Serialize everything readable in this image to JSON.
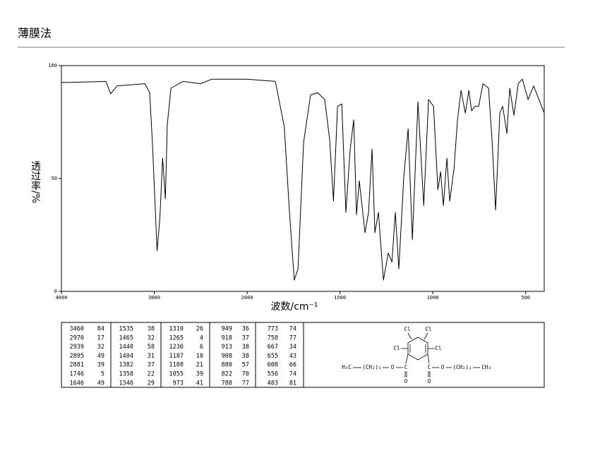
{
  "header": {
    "title": "薄膜法"
  },
  "chart_data": {
    "type": "line",
    "xlabel": "波数/cm⁻¹",
    "ylabel": "透过率/%",
    "xlim": [
      4000,
      400
    ],
    "xticks": [
      4000,
      3000,
      2000,
      1500,
      1000,
      500
    ],
    "xscale": {
      "break": 2000,
      "factor": 2
    },
    "ylim": [
      0,
      100
    ],
    "yticks": [
      0,
      50,
      100
    ],
    "grid": false,
    "color": "#000000",
    "x": [
      4000,
      3520,
      3470,
      3400,
      3100,
      3050,
      3020,
      2970,
      2940,
      2910,
      2880,
      2860,
      2820,
      2690,
      2500,
      2380,
      2000,
      1848,
      1800,
      1772,
      1746,
      1726,
      1696,
      1658,
      1620,
      1582,
      1555,
      1535,
      1513,
      1490,
      1468,
      1445,
      1426,
      1411,
      1396,
      1380,
      1365,
      1346,
      1327,
      1312,
      1293,
      1266,
      1240,
      1220,
      1202,
      1183,
      1156,
      1133,
      1110,
      1080,
      1049,
      1023,
      996,
      973,
      958,
      943,
      924,
      909,
      886,
      867,
      848,
      825,
      806,
      791,
      772,
      753,
      730,
      700,
      681,
      662,
      639,
      624,
      601,
      586,
      563,
      540,
      518,
      487,
      457,
      400
    ],
    "values": [
      92.5,
      93,
      87.5,
      91,
      92,
      88,
      66,
      18,
      32,
      59,
      41,
      74,
      90,
      93,
      92,
      94,
      94,
      93,
      73,
      35,
      5,
      10,
      66,
      87,
      88,
      85,
      67,
      40,
      82,
      83,
      35,
      63,
      76,
      34,
      49,
      37,
      26,
      35,
      63,
      26,
      35,
      5,
      17,
      13,
      35,
      10,
      51,
      72,
      23,
      84,
      38,
      85,
      82,
      45,
      53,
      38,
      59,
      40,
      54,
      76,
      89,
      79,
      89,
      80,
      82,
      82,
      92,
      90,
      67,
      36,
      79,
      82,
      70,
      90,
      78,
      92,
      94,
      85,
      91,
      79
    ]
  },
  "peak_table": [
    [
      [
        3460,
        84
      ],
      [
        2970,
        17
      ],
      [
        2939,
        32
      ],
      [
        2895,
        49
      ],
      [
        2881,
        39
      ],
      [
        1746,
        5
      ],
      [
        1646,
        49
      ]
    ],
    [
      [
        1535,
        38
      ],
      [
        1465,
        32
      ],
      [
        1440,
        58
      ],
      [
        1404,
        31
      ],
      [
        1382,
        37
      ],
      [
        1358,
        22
      ],
      [
        1346,
        29
      ]
    ],
    [
      [
        1310,
        26
      ],
      [
        1265,
        4
      ],
      [
        1236,
        6
      ],
      [
        1187,
        10
      ],
      [
        1108,
        21
      ],
      [
        1055,
        39
      ],
      [
        973,
        41
      ]
    ],
    [
      [
        949,
        36
      ],
      [
        918,
        37
      ],
      [
        913,
        38
      ],
      [
        908,
        38
      ],
      [
        880,
        57
      ],
      [
        822,
        70
      ],
      [
        788,
        77
      ]
    ],
    [
      [
        773,
        74
      ],
      [
        758,
        77
      ],
      [
        667,
        34
      ],
      [
        655,
        43
      ],
      [
        608,
        66
      ],
      [
        556,
        74
      ],
      [
        483,
        81
      ]
    ]
  ],
  "structure": {
    "labels": [
      "Cl",
      "Cl",
      "Cl",
      "Cl",
      "H₃C",
      "(CH₂)₂",
      "O",
      "C",
      "O",
      "C",
      "O",
      "(CH₂)₂",
      "CH₃",
      "O"
    ]
  }
}
